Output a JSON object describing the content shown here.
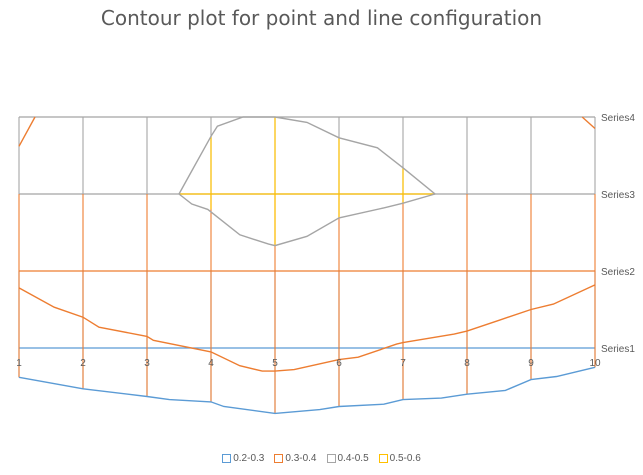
{
  "chart_data": {
    "type": "contour",
    "title": "Contour plot for point and line configuration",
    "x_categories": [
      "1",
      "2",
      "3",
      "4",
      "5",
      "6",
      "7",
      "8",
      "9",
      "10"
    ],
    "y_series": [
      "Series1",
      "Series2",
      "Series3",
      "Series4"
    ],
    "grid": true,
    "legend_position": "bottom",
    "bands": [
      {
        "name": "0.2-0.3",
        "color": "#5B9BD5"
      },
      {
        "name": "0.3-0.4",
        "color": "#ED7D31"
      },
      {
        "name": "0.4-0.5",
        "color": "#A5A5A5"
      },
      {
        "name": "0.5-0.6",
        "color": "#FFC000"
      }
    ],
    "contours": [
      {
        "band": "0.2-0.3",
        "points": [
          [
            1,
            0.62
          ],
          [
            2,
            0.47
          ],
          [
            3,
            0.37
          ],
          [
            3.35,
            0.33
          ],
          [
            4,
            0.3
          ],
          [
            4.2,
            0.24
          ],
          [
            5,
            0.15
          ],
          [
            5.7,
            0.2
          ],
          [
            6,
            0.24
          ],
          [
            6.7,
            0.27
          ],
          [
            7,
            0.33
          ],
          [
            7.6,
            0.35
          ],
          [
            8,
            0.4
          ],
          [
            8.6,
            0.45
          ],
          [
            9,
            0.59
          ],
          [
            9.4,
            0.63
          ],
          [
            10,
            0.75
          ]
        ]
      },
      {
        "band": "0.3-0.4",
        "points": [
          [
            1,
            1.78
          ],
          [
            1.55,
            1.53
          ],
          [
            2,
            1.4
          ],
          [
            2.25,
            1.27
          ],
          [
            3,
            1.15
          ],
          [
            3.1,
            1.1
          ],
          [
            4,
            0.95
          ],
          [
            4.45,
            0.77
          ],
          [
            4.8,
            0.7
          ],
          [
            5,
            0.7
          ],
          [
            5.3,
            0.72
          ],
          [
            6,
            0.85
          ],
          [
            6.3,
            0.88
          ],
          [
            6.9,
            1.05
          ],
          [
            7,
            1.07
          ],
          [
            7.8,
            1.18
          ],
          [
            8,
            1.22
          ],
          [
            8.5,
            1.36
          ],
          [
            9,
            1.5
          ],
          [
            9.35,
            1.57
          ],
          [
            10,
            1.82
          ]
        ]
      },
      {
        "band": "0.3-0.4",
        "points": [
          [
            1,
            3.62
          ],
          [
            1.25,
            4.0
          ]
        ]
      },
      {
        "band": "0.3-0.4",
        "points": [
          [
            9.8,
            4.0
          ],
          [
            10,
            3.85
          ]
        ]
      },
      {
        "band": "0.4-0.5",
        "points": [
          [
            3.5,
            3.0
          ],
          [
            3.7,
            2.87
          ],
          [
            3.95,
            2.8
          ],
          [
            4.45,
            2.47
          ],
          [
            4.9,
            2.35
          ],
          [
            5,
            2.33
          ],
          [
            5.5,
            2.45
          ],
          [
            6,
            2.69
          ],
          [
            6.7,
            2.82
          ],
          [
            7,
            2.88
          ],
          [
            7.5,
            3.0
          ],
          [
            7.0,
            3.34
          ],
          [
            6.6,
            3.6
          ],
          [
            6.0,
            3.73
          ],
          [
            5.5,
            3.93
          ],
          [
            5.0,
            4.0
          ],
          [
            4.5,
            4.0
          ],
          [
            4.1,
            3.88
          ],
          [
            4.0,
            3.75
          ],
          [
            3.7,
            3.3
          ],
          [
            3.5,
            3.0
          ]
        ]
      }
    ]
  }
}
